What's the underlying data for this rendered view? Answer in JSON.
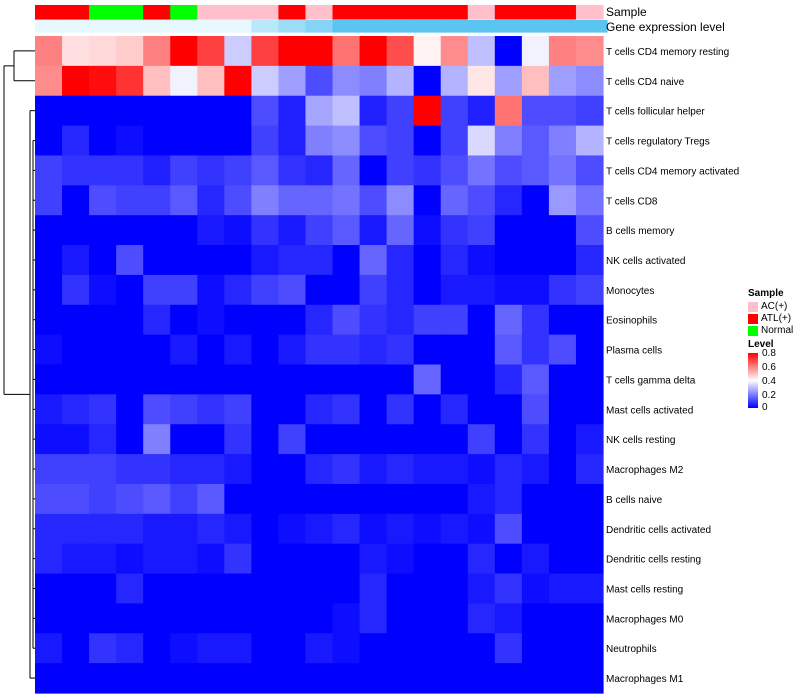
{
  "chart_data": {
    "type": "heatmap",
    "title": "",
    "annotation_labels": [
      "Sample",
      "Gene expression level"
    ],
    "sample_color_key": {
      "AC(+)": "#ffc0cb",
      "ATL(+)": "#ff0000",
      "Normal": "#00ff00"
    },
    "sample_groups": [
      "ATL(+)",
      "ATL(+)",
      "Normal",
      "Normal",
      "ATL(+)",
      "Normal",
      "AC(+)",
      "AC(+)",
      "AC(+)",
      "ATL(+)",
      "AC(+)",
      "ATL(+)",
      "ATL(+)",
      "ATL(+)",
      "ATL(+)",
      "ATL(+)",
      "AC(+)",
      "ATL(+)",
      "ATL(+)",
      "ATL(+)",
      "AC(+)"
    ],
    "gene_expression_level_colors": [
      "#e6f8fe",
      "#e6f8fe",
      "#e6f8fe",
      "#e6f8fe",
      "#e6f8fe",
      "#e6f8fe",
      "#e6f8fe",
      "#e6f8fe",
      "#b8e8fa",
      "#9cdcf7",
      "#85d3f6",
      "#5bc5f2",
      "#5bc5f2",
      "#5bc5f2",
      "#5bc5f2",
      "#5bc5f2",
      "#5bc5f2",
      "#5bc5f2",
      "#5bc5f2",
      "#5bc5f2",
      "#5bc5f2"
    ],
    "rows": [
      "T cells CD4 memory resting",
      "T cells CD4 naive",
      "T cells follicular helper",
      "T cells regulatory  Tregs",
      "T cells CD4 memory activated",
      "T cells CD8",
      "B cells memory",
      "NK cells activated",
      "Monocytes",
      "Eosinophils",
      "Plasma cells",
      "T cells gamma delta",
      "Mast cells activated",
      "NK cells resting",
      "Macrophages M2",
      "B cells naive",
      "Dendritic cells activated",
      "Dendritic cells resting",
      "Mast cells resting",
      "Macrophages M0",
      "Neutrophils",
      "Macrophages M1"
    ],
    "values": [
      [
        0.6,
        0.45,
        0.46,
        0.48,
        0.6,
        0.8,
        0.7,
        0.32,
        0.7,
        0.8,
        0.8,
        0.62,
        0.8,
        0.68,
        0.42,
        0.58,
        0.3,
        0.0,
        0.38,
        0.6,
        0.58
      ],
      [
        0.58,
        0.8,
        0.78,
        0.72,
        0.5,
        0.38,
        0.5,
        0.8,
        0.32,
        0.25,
        0.12,
        0.22,
        0.2,
        0.28,
        0.0,
        0.28,
        0.44,
        0.25,
        0.5,
        0.25,
        0.22
      ],
      [
        0.0,
        0.0,
        0.0,
        0.0,
        0.0,
        0.0,
        0.0,
        0.0,
        0.12,
        0.05,
        0.26,
        0.3,
        0.05,
        0.1,
        0.8,
        0.1,
        0.05,
        0.62,
        0.12,
        0.12,
        0.1
      ],
      [
        0.0,
        0.06,
        0.0,
        0.02,
        0.0,
        0.0,
        0.0,
        0.0,
        0.1,
        0.05,
        0.2,
        0.22,
        0.12,
        0.1,
        0.0,
        0.1,
        0.34,
        0.2,
        0.14,
        0.2,
        0.28
      ],
      [
        0.1,
        0.08,
        0.08,
        0.08,
        0.05,
        0.1,
        0.08,
        0.1,
        0.14,
        0.08,
        0.06,
        0.16,
        0.0,
        0.1,
        0.08,
        0.12,
        0.18,
        0.12,
        0.14,
        0.18,
        0.12
      ],
      [
        0.1,
        0.0,
        0.12,
        0.1,
        0.1,
        0.14,
        0.06,
        0.12,
        0.2,
        0.16,
        0.16,
        0.18,
        0.12,
        0.22,
        0.0,
        0.16,
        0.12,
        0.06,
        0.0,
        0.24,
        0.18
      ],
      [
        0.0,
        0.0,
        0.0,
        0.0,
        0.0,
        0.0,
        0.04,
        0.02,
        0.08,
        0.04,
        0.1,
        0.14,
        0.04,
        0.16,
        0.02,
        0.08,
        0.1,
        0.0,
        0.0,
        0.0,
        0.12
      ],
      [
        0.0,
        0.04,
        0.0,
        0.12,
        0.0,
        0.0,
        0.0,
        0.0,
        0.04,
        0.06,
        0.06,
        0.0,
        0.16,
        0.06,
        0.0,
        0.06,
        0.02,
        0.0,
        0.0,
        0.0,
        0.06
      ],
      [
        0.0,
        0.08,
        0.02,
        0.0,
        0.1,
        0.1,
        0.02,
        0.06,
        0.1,
        0.12,
        0.0,
        0.0,
        0.1,
        0.06,
        0.0,
        0.04,
        0.04,
        0.02,
        0.02,
        0.08,
        0.1
      ],
      [
        0.0,
        0.0,
        0.0,
        0.0,
        0.06,
        0.0,
        0.02,
        0.0,
        0.0,
        0.0,
        0.06,
        0.12,
        0.08,
        0.06,
        0.1,
        0.1,
        0.0,
        0.16,
        0.08,
        0.0,
        0.0
      ],
      [
        0.02,
        0.0,
        0.0,
        0.0,
        0.0,
        0.04,
        0.0,
        0.04,
        0.0,
        0.04,
        0.08,
        0.08,
        0.06,
        0.08,
        0.0,
        0.0,
        0.0,
        0.14,
        0.08,
        0.12,
        0.0
      ],
      [
        0.0,
        0.0,
        0.0,
        0.0,
        0.0,
        0.0,
        0.0,
        0.0,
        0.0,
        0.0,
        0.0,
        0.0,
        0.0,
        0.0,
        0.16,
        0.0,
        0.0,
        0.06,
        0.14,
        0.0,
        0.0
      ],
      [
        0.04,
        0.06,
        0.08,
        0.0,
        0.12,
        0.1,
        0.08,
        0.1,
        0.0,
        0.0,
        0.06,
        0.08,
        0.0,
        0.08,
        0.0,
        0.06,
        0.0,
        0.0,
        0.12,
        0.0,
        0.0
      ],
      [
        0.02,
        0.02,
        0.06,
        0.0,
        0.2,
        0.0,
        0.0,
        0.08,
        0.0,
        0.1,
        0.0,
        0.0,
        0.0,
        0.0,
        0.0,
        0.0,
        0.1,
        0.0,
        0.08,
        0.0,
        0.04
      ],
      [
        0.1,
        0.1,
        0.1,
        0.08,
        0.08,
        0.06,
        0.06,
        0.04,
        0.0,
        0.0,
        0.06,
        0.08,
        0.04,
        0.06,
        0.04,
        0.04,
        0.02,
        0.06,
        0.04,
        0.0,
        0.06
      ],
      [
        0.12,
        0.12,
        0.1,
        0.12,
        0.14,
        0.1,
        0.14,
        0.0,
        0.0,
        0.0,
        0.0,
        0.0,
        0.0,
        0.0,
        0.0,
        0.0,
        0.04,
        0.06,
        0.0,
        0.0,
        0.0
      ],
      [
        0.06,
        0.06,
        0.06,
        0.06,
        0.04,
        0.04,
        0.06,
        0.04,
        0.0,
        0.02,
        0.04,
        0.06,
        0.02,
        0.04,
        0.02,
        0.04,
        0.02,
        0.12,
        0.0,
        0.0,
        0.0
      ],
      [
        0.06,
        0.04,
        0.04,
        0.02,
        0.04,
        0.04,
        0.02,
        0.08,
        0.0,
        0.0,
        0.0,
        0.0,
        0.04,
        0.02,
        0.0,
        0.0,
        0.06,
        0.0,
        0.04,
        0.0,
        0.0
      ],
      [
        0.0,
        0.0,
        0.0,
        0.06,
        0.0,
        0.0,
        0.0,
        0.0,
        0.0,
        0.0,
        0.0,
        0.0,
        0.06,
        0.0,
        0.0,
        0.0,
        0.04,
        0.08,
        0.02,
        0.04,
        0.04
      ],
      [
        0.0,
        0.0,
        0.0,
        0.0,
        0.0,
        0.0,
        0.0,
        0.0,
        0.0,
        0.0,
        0.0,
        0.02,
        0.06,
        0.0,
        0.0,
        0.0,
        0.06,
        0.04,
        0.0,
        0.0,
        0.0
      ],
      [
        0.04,
        0.0,
        0.08,
        0.06,
        0.0,
        0.02,
        0.04,
        0.04,
        0.0,
        0.0,
        0.04,
        0.02,
        0.0,
        0.0,
        0.0,
        0.0,
        0.0,
        0.08,
        0.0,
        0.0,
        0.0
      ],
      [
        0.0,
        0.0,
        0.0,
        0.0,
        0.0,
        0.0,
        0.0,
        0.0,
        0.0,
        0.0,
        0.0,
        0.0,
        0.0,
        0.0,
        0.0,
        0.0,
        0.0,
        0.0,
        0.0,
        0.0,
        0.0
      ]
    ],
    "color_scale": {
      "min": 0,
      "max": 0.8,
      "colors": [
        "#0000ff",
        "#ffffff",
        "#ff0000"
      ]
    },
    "legend": {
      "sample_title": "Sample",
      "sample_entries": [
        "AC(+)",
        "ATL(+)",
        "Normal"
      ],
      "level_title": "Level",
      "level_ticks": [
        "0.8",
        "0.6",
        "0.4",
        "0.2",
        "0"
      ]
    }
  }
}
